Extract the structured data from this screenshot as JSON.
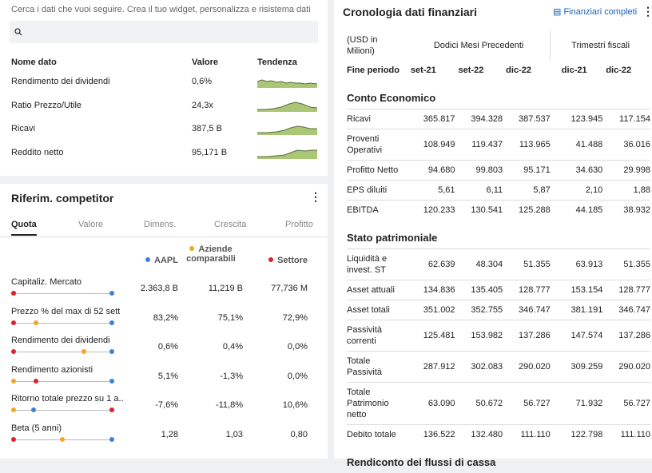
{
  "widget": {
    "hint": "Cerca i dati che vuoi seguire. Crea il tuo widget, personalizza e risistema dati",
    "columns": [
      "Nome dato",
      "Valore",
      "Tendenza"
    ],
    "rows": [
      {
        "name": "Rendimento dei dividendi",
        "value": "0,6%"
      },
      {
        "name": "Ratio Prezzo/Utile",
        "value": "24,3x"
      },
      {
        "name": "Ricavi",
        "value": "387,5 B"
      },
      {
        "name": "Reddito netto",
        "value": "95,171 B"
      }
    ]
  },
  "competitors": {
    "title": "Riferim. competitor",
    "tabs": [
      "Quota",
      "Valore",
      "Dimens.",
      "Crescita",
      "Profitto"
    ],
    "legend": [
      "AAPL",
      "Aziende comparabili",
      "Settore"
    ],
    "rows": [
      {
        "name": "Capitaliz. Mercato",
        "values": [
          "2.363,8 B",
          "11,219 B",
          "77,736 M"
        ]
      },
      {
        "name": "Prezzo % del max di 52 sett",
        "values": [
          "83,2%",
          "75,1%",
          "72,9%"
        ]
      },
      {
        "name": "Rendimento dei dividendi",
        "values": [
          "0,6%",
          "0,4%",
          "0,0%"
        ]
      },
      {
        "name": "Rendimento azionisti",
        "values": [
          "5,1%",
          "-1,3%",
          "0,0%"
        ]
      },
      {
        "name": "Ritorno totale prezzo su 1 a...",
        "values": [
          "-7,6%",
          "-11,8%",
          "10,6%"
        ]
      },
      {
        "name": "Beta (5 anni)",
        "values": [
          "1,28",
          "1,03",
          "0,80"
        ]
      }
    ]
  },
  "financials": {
    "title": "Cronologia dati finanziari",
    "link": "Finanziari completi",
    "unit": "(USD in Milioni)",
    "groups": [
      "Dodici Mesi Precedenti",
      "Trimestri fiscali"
    ],
    "period_label": "Fine periodo",
    "periods": [
      "set-21",
      "set-22",
      "dic-22",
      "dic-21",
      "dic-22"
    ],
    "sections": [
      {
        "title": "Conto Economico",
        "rows": [
          {
            "name": "Ricavi",
            "values": [
              "365.817",
              "394.328",
              "387.537",
              "123.945",
              "117.154"
            ]
          },
          {
            "name": "Proventi Operativi",
            "values": [
              "108.949",
              "119.437",
              "113.965",
              "41.488",
              "36.016"
            ]
          },
          {
            "name": "Profitto Netto",
            "values": [
              "94.680",
              "99.803",
              "95.171",
              "34.630",
              "29.998"
            ]
          },
          {
            "name": "EPS diluiti",
            "values": [
              "5,61",
              "6,11",
              "5,87",
              "2,10",
              "1,88"
            ]
          },
          {
            "name": "EBITDA",
            "values": [
              "120.233",
              "130.541",
              "125.288",
              "44.185",
              "38.932"
            ]
          }
        ]
      },
      {
        "title": "Stato patrimoniale",
        "rows": [
          {
            "name": "Liquidità e invest. ST",
            "values": [
              "62.639",
              "48.304",
              "51.355",
              "63.913",
              "51.355"
            ]
          },
          {
            "name": "Asset attuali",
            "values": [
              "134.836",
              "135.405",
              "128.777",
              "153.154",
              "128.777"
            ]
          },
          {
            "name": "Asset totali",
            "values": [
              "351.002",
              "352.755",
              "346.747",
              "381.191",
              "346.747"
            ]
          },
          {
            "name": "Passività correnti",
            "values": [
              "125.481",
              "153.982",
              "137.286",
              "147.574",
              "137.286"
            ]
          },
          {
            "name": "Totale Passività",
            "values": [
              "287.912",
              "302.083",
              "290.020",
              "309.259",
              "290.020"
            ]
          },
          {
            "name": "Totale Patrimonio netto",
            "values": [
              "63.090",
              "50.672",
              "56.727",
              "71.932",
              "56.727"
            ]
          },
          {
            "name": "Debito totale",
            "values": [
              "136.522",
              "132.480",
              "111.110",
              "122.798",
              "111.110"
            ]
          }
        ]
      },
      {
        "title": "Rendiconto dei flussi di cassa",
        "rows": []
      }
    ]
  }
}
